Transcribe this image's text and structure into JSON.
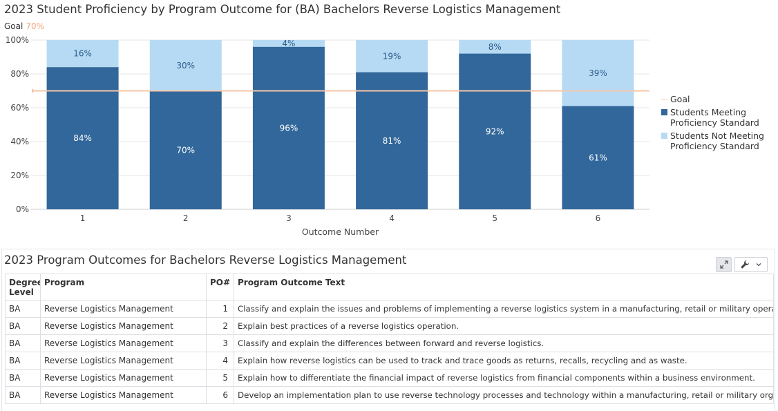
{
  "chart_data": {
    "type": "bar",
    "stacked": true,
    "title": "2023 Student Proficiency by Program Outcome for (BA) Bachelors Reverse Logistics Management",
    "goal_label": "Goal",
    "goal_value_label": "70%",
    "goal": 70,
    "categories": [
      "1",
      "2",
      "3",
      "4",
      "5",
      "6"
    ],
    "series": [
      {
        "name": "Students Meeting Proficiency Standard",
        "values": [
          84,
          70,
          96,
          81,
          92,
          61
        ],
        "labels": [
          "84%",
          "70%",
          "96%",
          "81%",
          "92%",
          "61%"
        ],
        "color": "#31679a"
      },
      {
        "name": "Students Not Meeting Proficiency Standard",
        "values": [
          16,
          30,
          4,
          19,
          8,
          39
        ],
        "labels": [
          "16%",
          "30%",
          "4%",
          "19%",
          "8%",
          "39%"
        ],
        "color": "#b6daf4"
      }
    ],
    "xlabel": "Outcome Number",
    "ylabel": "",
    "ylim": [
      0,
      100
    ],
    "yticks": [
      "0%",
      "20%",
      "40%",
      "60%",
      "80%",
      "100%"
    ],
    "grid": true,
    "legend": {
      "position": "right",
      "entries": [
        "Goal",
        "Students Meeting Proficiency Standard",
        "Students Not Meeting Proficiency Standard"
      ]
    },
    "goal_color": "#f5c6ab"
  },
  "table": {
    "title": "2023 Program Outcomes for Bachelors Reverse Logistics Management",
    "headers": {
      "degree_level": "Degree Level",
      "program": "Program",
      "po": "PO#",
      "text": "Program Outcome Text"
    },
    "rows": [
      {
        "degree": "BA",
        "program": "Reverse Logistics Management",
        "po": "1",
        "text": "Classify and explain the issues and problems of implementing a reverse logistics system in a manufacturing, retail or military operation."
      },
      {
        "degree": "BA",
        "program": "Reverse Logistics Management",
        "po": "2",
        "text": "Explain best practices of a reverse logistics operation."
      },
      {
        "degree": "BA",
        "program": "Reverse Logistics Management",
        "po": "3",
        "text": "Classify and explain the differences between forward and reverse logistics."
      },
      {
        "degree": "BA",
        "program": "Reverse Logistics Management",
        "po": "4",
        "text": "Explain how reverse logistics can be used to track and trace goods as returns, recalls, recycling and as waste."
      },
      {
        "degree": "BA",
        "program": "Reverse Logistics Management",
        "po": "5",
        "text": "Explain how to differentiate the financial impact of reverse logistics from financial components within a business environment."
      },
      {
        "degree": "BA",
        "program": "Reverse Logistics Management",
        "po": "6",
        "text": "Develop an implementation plan to use reverse technology processes and technology within a manufacturing, retail or military organization."
      }
    ]
  },
  "toolbar": {
    "expand_icon": "expand-icon",
    "tools_icon": "wrench-icon",
    "dropdown_icon": "chevron-down-icon"
  }
}
